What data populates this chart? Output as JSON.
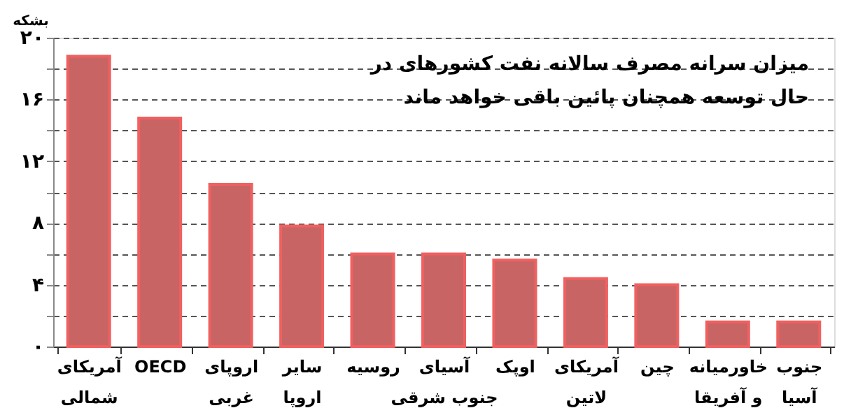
{
  "chart_data": {
    "type": "bar",
    "title": "میزان سرانه مصرف سالانه نفت کشورهای در حال توسعه همچنان پائین باقی خواهد ماند",
    "ylabel": "بشکه",
    "categories": [
      "آمریکای شمالی",
      "OECD",
      "اروپای غربی",
      "سایر اروپا",
      "روسیه",
      "آسیای جنوب شرقی",
      "اوپک",
      "آمریکای لاتین",
      "چین",
      "خاورمیانه و آفریقا",
      "جنوب آسیا"
    ],
    "values": [
      18.8,
      14.8,
      10.5,
      7.8,
      6.0,
      6.0,
      5.6,
      4.4,
      4.0,
      1.6,
      1.6
    ],
    "color": "#c86464",
    "ylim": [
      0,
      20
    ],
    "yticks": [
      {
        "value": 0,
        "label": "۰"
      },
      {
        "value": 2,
        "label": null
      },
      {
        "value": 4,
        "label": "۴"
      },
      {
        "value": 6,
        "label": null
      },
      {
        "value": 8,
        "label": "۸"
      },
      {
        "value": 10,
        "label": null
      },
      {
        "value": 12,
        "label": "۱۲"
      },
      {
        "value": 14,
        "label": null
      },
      {
        "value": 16,
        "label": "۱۶"
      },
      {
        "value": 18,
        "label": null
      },
      {
        "value": 20,
        "label": "۲۰"
      }
    ],
    "grid": "y"
  }
}
